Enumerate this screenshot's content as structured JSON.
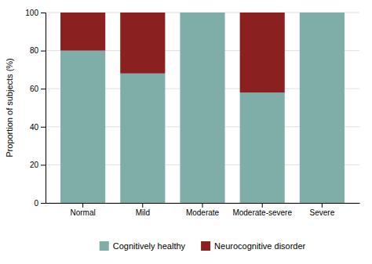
{
  "chart_data": {
    "type": "bar",
    "stacked": true,
    "categories": [
      "Normal",
      "Mild",
      "Moderate",
      "Moderate-severe",
      "Severe"
    ],
    "series": [
      {
        "name": "Cognitively healthy",
        "color": "#7fada8",
        "values": [
          80,
          68,
          100,
          58,
          100
        ]
      },
      {
        "name": "Neurocognitive disorder",
        "color": "#8b2020",
        "values": [
          20,
          32,
          0,
          42,
          0
        ]
      }
    ],
    "ylabel": "Proportion of subjects (%)",
    "ylim": [
      0,
      100
    ],
    "yticks": [
      0,
      20,
      40,
      60,
      80,
      100
    ],
    "grid": true,
    "legend": "bottom"
  }
}
